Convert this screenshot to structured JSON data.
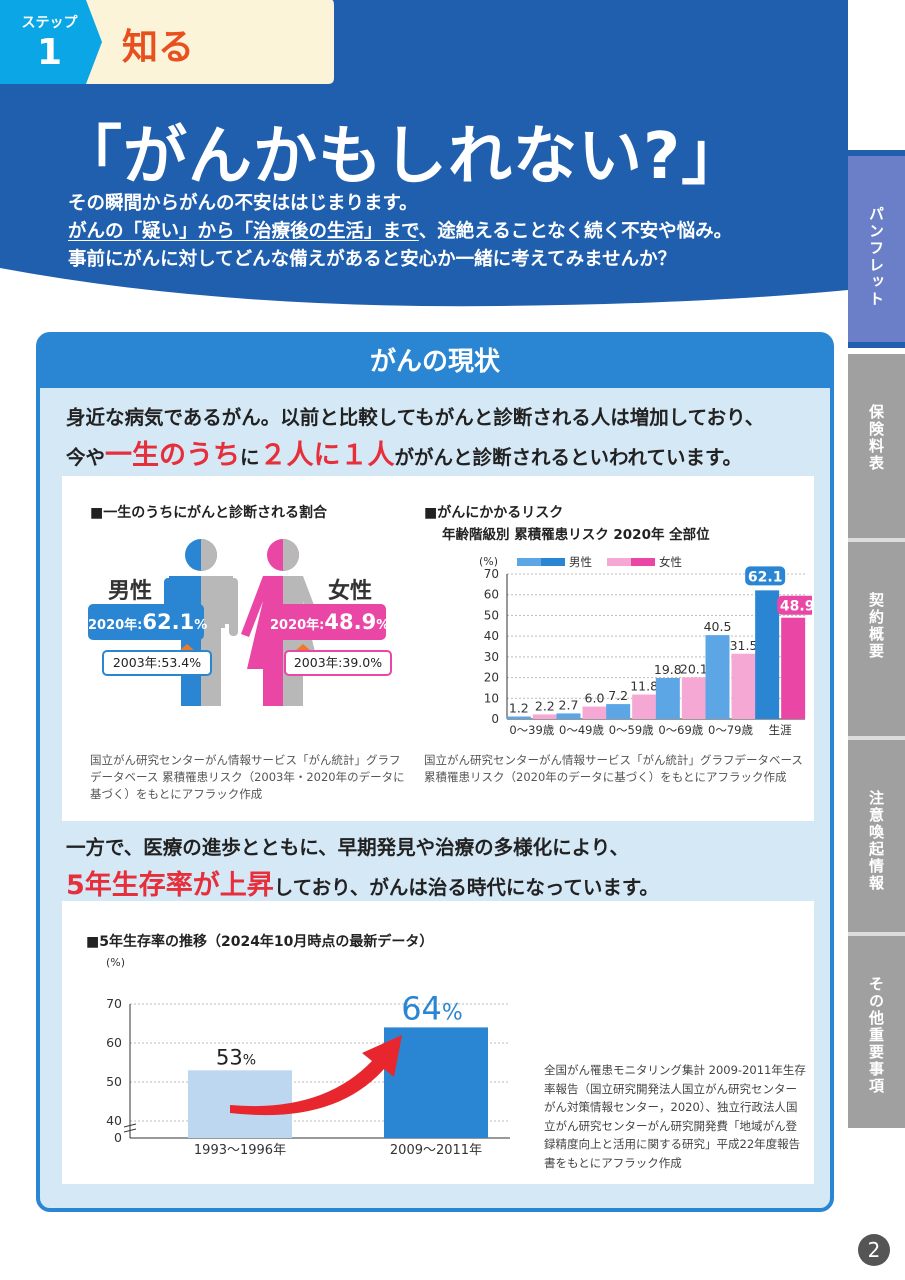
{
  "header": {
    "step_label": "ステップ",
    "step_number": "1",
    "step_title": "知る",
    "main_title": "「がんかもしれない?」",
    "intro_line1": "その瞬間からがんの不安ははじまります。",
    "intro_line2_a": "がんの「疑い」から「治療後の生活」まで",
    "intro_line2_b": "、途絶えることなく続く不安や悩み。",
    "intro_line3": "事前にがんに対してどんな備えがあると安心か一緒に考えてみませんか？"
  },
  "side_tabs": [
    "パンフレット",
    "保険料表",
    "契約概要",
    "注意喚起情報",
    "その他重要事項"
  ],
  "panel": {
    "heading": "がんの現状",
    "lead1_line1": "身近な病気であるがん。以前と比較してもがんと診断される人は増加しており、",
    "lead1_a": "今や",
    "lead1_b": "一生のうち",
    "lead1_c": "に",
    "lead1_d": "２人に１人",
    "lead1_e": "ががんと診断されるといわれています。",
    "lead2_line1": "一方で、医療の進歩とともに、早期発見や治療の多様化により、",
    "lead2_a": "5年生存率が上昇",
    "lead2_b": "しており、がんは治る時代になっています。"
  },
  "lifetime": {
    "title": "■一生のうちにがんと診断される割合",
    "male_label": "男性",
    "female_label": "女性",
    "year_new_prefix": "2020年:",
    "year_old_prefix": "2003年:",
    "male_2020": "62.1",
    "male_2003": "53.4",
    "female_2020": "48.9",
    "female_2003": "39.0",
    "pct": "%",
    "source": "国立がん研究センターがん情報サービス「がん統計」グラフデータベース 累積罹患リスク（2003年・2020年のデータに基づく）をもとにアフラック作成"
  },
  "risk": {
    "title": "■がんにかかるリスク",
    "subtitle": "年齢階級別 累積罹患リスク 2020年 全部位",
    "source": "国立がん研究センターがん情報サービス「がん統計」グラフデータベース累積罹患リスク（2020年のデータに基づく）をもとにアフラック作成"
  },
  "survival": {
    "title": "■5年生存率の推移（2024年10月時点の最新データ）",
    "source": "全国がん罹患モニタリング集計 2009-2011年生存率報告（国立研究開発法人国立がん研究センターがん対策情報センター，2020）、独立行政法人国立がん研究センターがん研究開発費「地域がん登録精度向上と活用に関する研究」平成22年度報告書をもとにアフラック作成"
  },
  "chart_data": [
    {
      "type": "bar",
      "ylabel": "(%)",
      "ylim": [
        0,
        70
      ],
      "yticks": [
        0,
        10,
        20,
        30,
        40,
        50,
        60,
        70
      ],
      "categories": [
        "0～39歳",
        "0～49歳",
        "0～59歳",
        "0～69歳",
        "0～79歳",
        "生涯"
      ],
      "series": [
        {
          "name": "男性",
          "color": "#3a8fd8",
          "values": [
            1.2,
            2.7,
            7.2,
            19.8,
            40.5,
            62.1
          ]
        },
        {
          "name": "女性",
          "color": "#f28cc4",
          "values": [
            2.2,
            6.0,
            11.8,
            20.1,
            31.5,
            48.9
          ]
        }
      ],
      "legend": "top"
    },
    {
      "type": "bar",
      "ylabel": "(%)",
      "ylim": [
        0,
        70
      ],
      "yticks": [
        0,
        40,
        50,
        60,
        70
      ],
      "axis_break": true,
      "categories": [
        "1993～1996年",
        "2009～2011年"
      ],
      "values": [
        53,
        64
      ],
      "colors": [
        "#bdd7f0",
        "#2a86d2"
      ],
      "labels": [
        "53",
        "64"
      ],
      "unit": "%"
    }
  ],
  "page_number": "2"
}
